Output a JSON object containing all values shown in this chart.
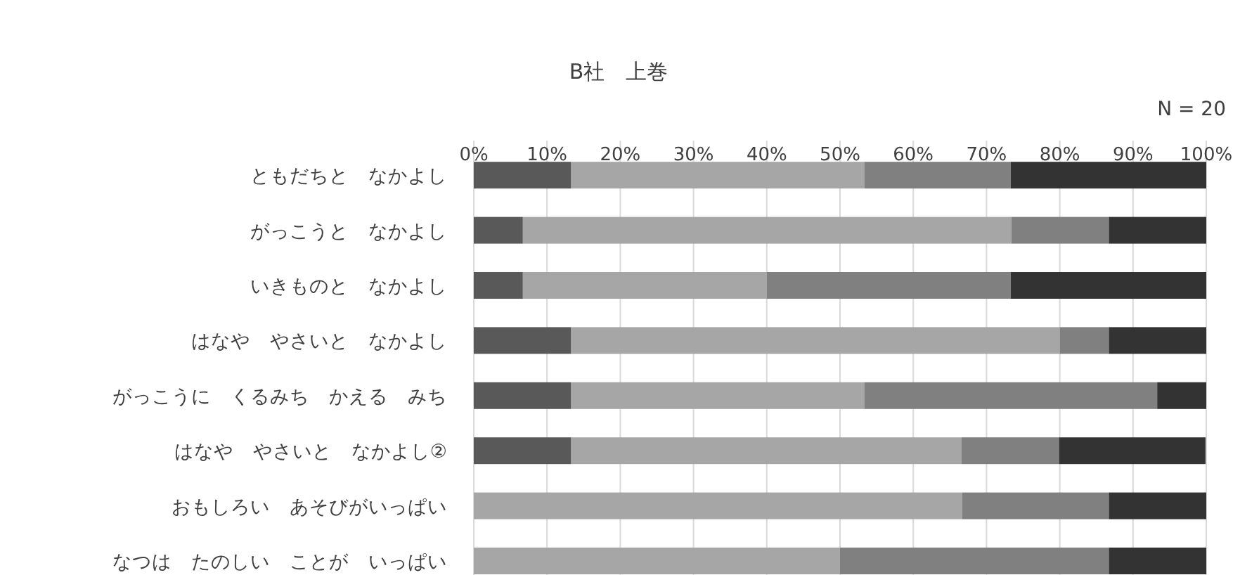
{
  "chart_data": {
    "type": "bar",
    "orientation": "horizontal",
    "stacked": true,
    "title": "B社　上巻",
    "annotations": [
      "N = 20"
    ],
    "categories": [
      "ともだちと　なかよし",
      "がっこうと　なかよし",
      "いきものと　なかよし",
      "はなや　やさいと　なかよし",
      "がっこうに　くるみち　かえる　みち",
      "はなや　やさいと　なかよし②",
      "おもしろい　あそびがいっぱい",
      "なつは　たのしい　ことが　いっぱい"
    ],
    "series": [
      {
        "color": "#595959",
        "values": [
          13.3,
          6.7,
          6.7,
          13.3,
          13.3,
          13.3,
          0,
          0
        ]
      },
      {
        "color": "#a6a6a6",
        "values": [
          40,
          66.7,
          33.3,
          66.7,
          40,
          53.3,
          66.7,
          50
        ]
      },
      {
        "color": "#808080",
        "values": [
          20,
          13.3,
          33.3,
          6.7,
          40,
          13.3,
          20,
          36.7
        ]
      },
      {
        "color": "#333333",
        "values": [
          26.7,
          13.3,
          26.7,
          13.3,
          6.7,
          20,
          13.3,
          13.3
        ]
      }
    ],
    "xlim": [
      0,
      100
    ],
    "xticks": [
      {
        "value": 0,
        "label": "0%"
      },
      {
        "value": 10,
        "label": "10%"
      },
      {
        "value": 20,
        "label": "20%"
      },
      {
        "value": 30,
        "label": "30%"
      },
      {
        "value": 40,
        "label": "40%"
      },
      {
        "value": 50,
        "label": "50%"
      },
      {
        "value": 60,
        "label": "60%"
      },
      {
        "value": 70,
        "label": "70%"
      },
      {
        "value": 80,
        "label": "80%"
      },
      {
        "value": 90,
        "label": "90%"
      },
      {
        "value": 100,
        "label": "100%"
      }
    ],
    "grid": "x"
  }
}
